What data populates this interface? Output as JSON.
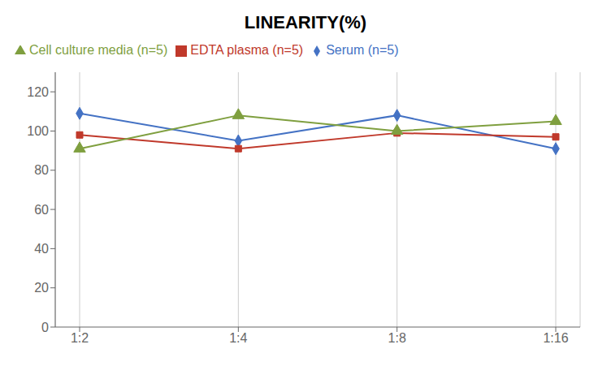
{
  "chart_data": {
    "type": "line",
    "title": "LINEARITY(%)",
    "categories": [
      "1:2",
      "1:4",
      "1:8",
      "1:16"
    ],
    "series": [
      {
        "name": "Serum (n=5)",
        "color": "#4472C4",
        "marker": "diamond",
        "line_style": "solid",
        "values": [
          109,
          95,
          108,
          91
        ]
      },
      {
        "name": "EDTA plasma (n=5)",
        "color": "#C0392B",
        "marker": "square",
        "line_style": "solid",
        "values": [
          98,
          91,
          99,
          97
        ]
      },
      {
        "name": "Cell culture media (n=5)",
        "color": "#7F9F3F",
        "marker": "triangle",
        "line_style": "solid",
        "values": [
          91,
          108,
          100,
          105
        ]
      }
    ],
    "ylim": [
      0,
      130
    ],
    "yticks": [
      0,
      20,
      40,
      60,
      80,
      100,
      120
    ],
    "grid": true,
    "legend": "upper left"
  }
}
